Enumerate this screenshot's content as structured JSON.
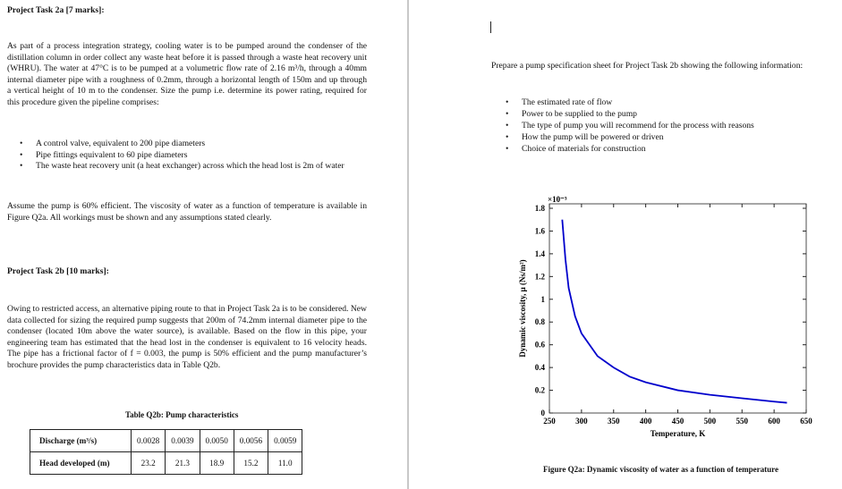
{
  "task2a": {
    "heading": "Project Task 2a [7 marks]:",
    "paragraph": "As part of a process integration strategy, cooling water is to be pumped around the condenser of the distillation column in order collect any waste heat before it is passed through a waste heat recovery unit (WHRU). The water at 47°C is to be pumped at a volumetric flow rate of 2.16 m³/h, through a 40mm internal diameter pipe with a roughness of 0.2mm, through a horizontal length of 150m and up through a vertical height of 10 m to the condenser. Size the pump i.e. determine its power rating, required for this procedure given the pipeline comprises:",
    "bullets": [
      "A control valve, equivalent to 200 pipe diameters",
      "Pipe fittings equivalent to 60 pipe diameters",
      "The waste heat recovery unit (a heat exchanger) across which the head lost is 2m of water"
    ],
    "note": "Assume the pump is 60% efficient. The viscosity of water as a function of temperature is available in Figure Q2a. All workings must be shown and any assumptions stated clearly."
  },
  "task2b": {
    "heading": "Project Task 2b [10 marks]:",
    "paragraph": "Owing to restricted access, an alternative piping route to that in Project Task 2a is to be considered. New data collected for sizing the required pump suggests that 200m of 74.2mm internal diameter pipe to the condenser (located 10m above the water source), is available. Based on the flow in this pipe, your engineering team has estimated that the head lost in the condenser is equivalent to 16 velocity heads. The pipe has a frictional factor of f = 0.003, the pump is 50% efficient and the pump manufacturer’s brochure provides the pump characteristics data in Table Q2b.",
    "instruction": "Prepare a pump specification sheet for Project Task 2b showing the following information:",
    "items": [
      "The estimated rate of flow",
      "Power to be supplied to the pump",
      "The type of pump you will recommend for the process with reasons",
      "How the pump will be powered or driven",
      "Choice of materials for construction"
    ]
  },
  "table": {
    "caption": "Table Q2b: Pump characteristics",
    "rows": [
      {
        "label": "Discharge (m³/s)",
        "cells": [
          "0.0028",
          "0.0039",
          "0.0050",
          "0.0056",
          "0.0059"
        ]
      },
      {
        "label": "Head developed (m)",
        "cells": [
          "23.2",
          "21.3",
          "18.9",
          "15.2",
          "11.0"
        ]
      }
    ]
  },
  "chart_data": {
    "type": "line",
    "caption": "Figure Q2a: Dynamic viscosity of water as a function of temperature",
    "xlabel": "Temperature, K",
    "ylabel": "Dynamic viscosity, μ (Ns/m²)",
    "exponent_label": "×10⁻³",
    "x": [
      270,
      275,
      280,
      290,
      300,
      325,
      350,
      375,
      400,
      450,
      500,
      550,
      600,
      620
    ],
    "series": [
      {
        "color": "#0000cc",
        "values": [
          1.7,
          1.35,
          1.1,
          0.85,
          0.7,
          0.5,
          0.4,
          0.32,
          0.27,
          0.2,
          0.16,
          0.13,
          0.1,
          0.09
        ]
      }
    ],
    "xlim": [
      250,
      650
    ],
    "ylim": [
      0,
      1.8
    ],
    "xticks": [
      250,
      300,
      350,
      400,
      450,
      500,
      550,
      600,
      650
    ],
    "yticks": [
      0,
      0.2,
      0.4,
      0.6,
      0.8,
      1,
      1.2,
      1.4,
      1.6,
      1.8
    ]
  }
}
